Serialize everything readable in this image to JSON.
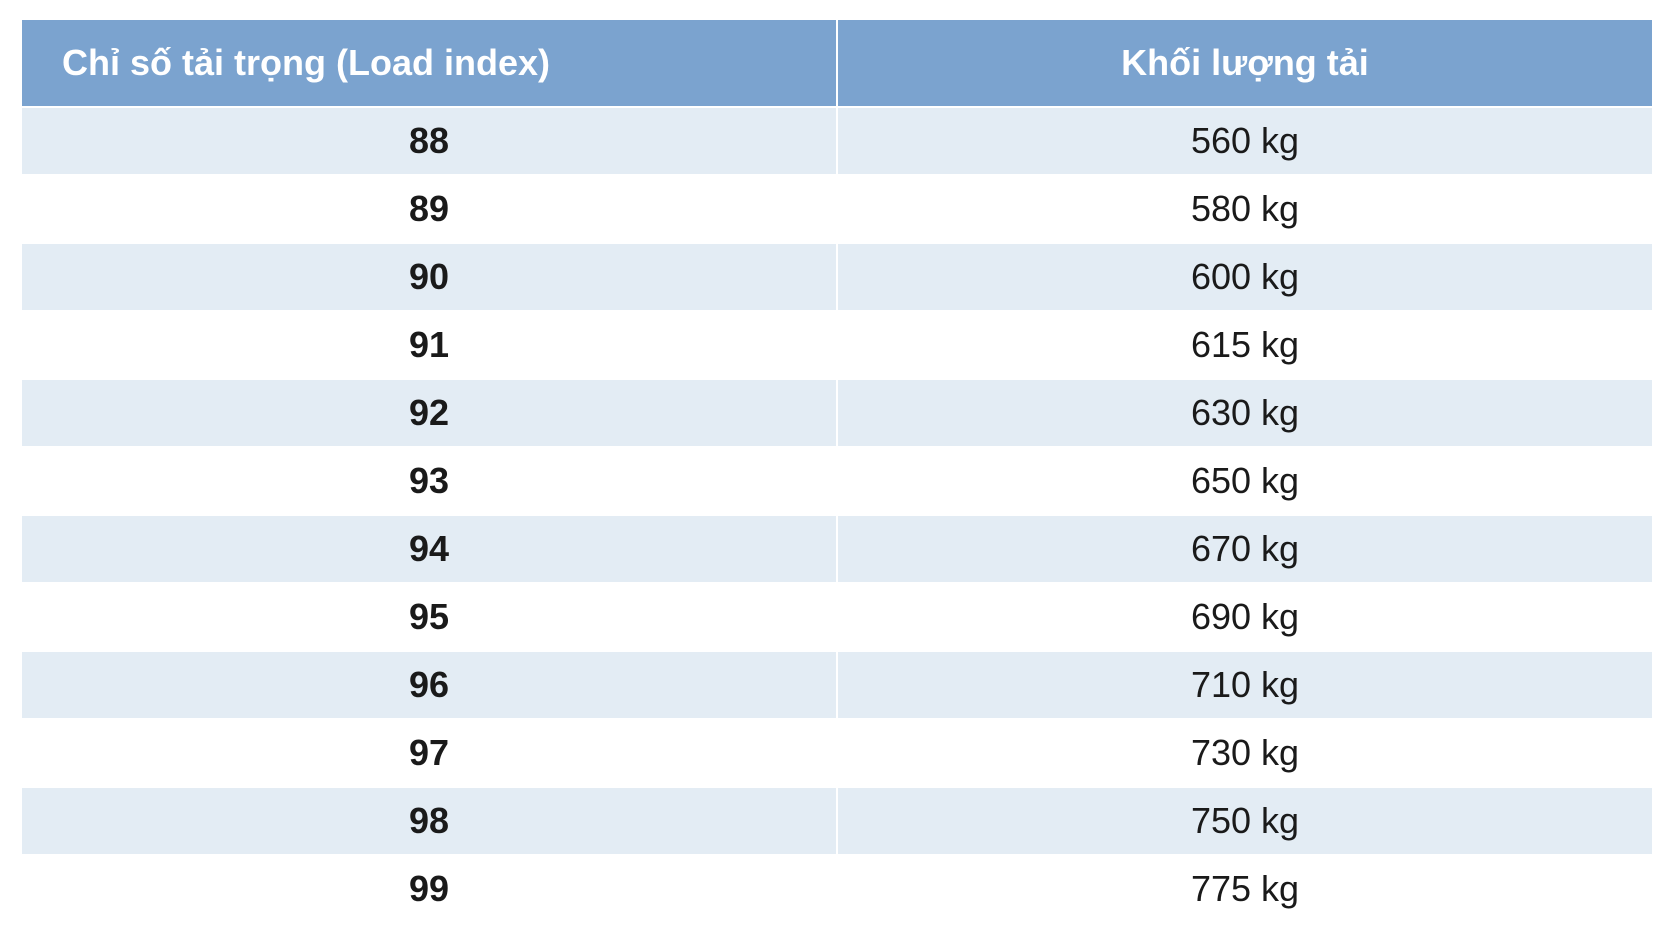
{
  "table": {
    "type": "table",
    "header_bg": "#7ba3cf",
    "header_text_color": "#ffffff",
    "row_alt_bg": "#e3ecf4",
    "row_bg": "#ffffff",
    "border_color": "#ffffff",
    "cell_text_color": "#1a1a1a",
    "header_fontsize": 36,
    "cell_fontsize": 36,
    "col_index_fontweight": 700,
    "col_value_fontweight": 400,
    "columns": [
      {
        "label": "Chỉ số tải trọng (Load index)",
        "align": "left"
      },
      {
        "label": "Khối lượng tải",
        "align": "center"
      }
    ],
    "rows": [
      {
        "index": "88",
        "load": "560 kg"
      },
      {
        "index": "89",
        "load": "580 kg"
      },
      {
        "index": "90",
        "load": "600 kg"
      },
      {
        "index": "91",
        "load": "615 kg"
      },
      {
        "index": "92",
        "load": "630 kg"
      },
      {
        "index": "93",
        "load": "650 kg"
      },
      {
        "index": "94",
        "load": "670 kg"
      },
      {
        "index": "95",
        "load": "690 kg"
      },
      {
        "index": "96",
        "load": "710 kg"
      },
      {
        "index": "97",
        "load": "730 kg"
      },
      {
        "index": "98",
        "load": "750 kg"
      },
      {
        "index": "99",
        "load": "775 kg"
      }
    ]
  }
}
